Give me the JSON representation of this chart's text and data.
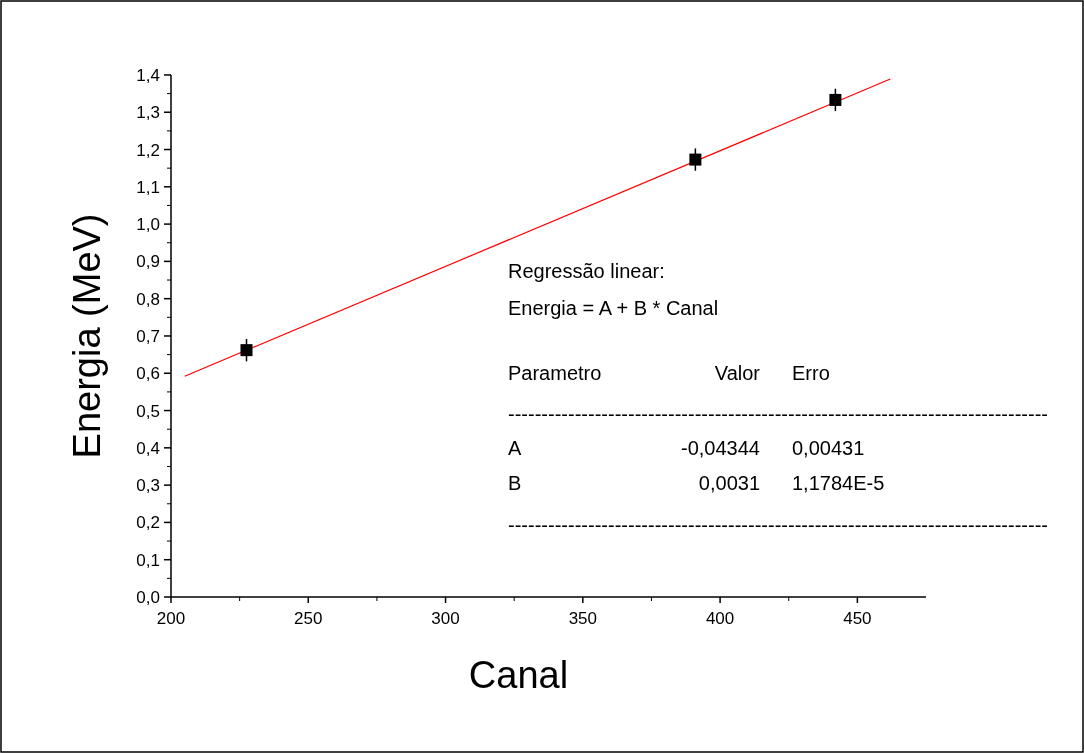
{
  "chart_data": {
    "type": "scatter",
    "xlabel": "Canal",
    "ylabel": "Energia (MeV)",
    "xlim": [
      200,
      475
    ],
    "xticks": [
      200,
      250,
      300,
      350,
      400,
      450
    ],
    "ylim": [
      0,
      1.4
    ],
    "yticks": [
      {
        "value": 0,
        "label": "0,0"
      },
      {
        "value": 0.1,
        "label": "0,1"
      },
      {
        "value": 0.2,
        "label": "0,2"
      },
      {
        "value": 0.3,
        "label": "0,3"
      },
      {
        "value": 0.4,
        "label": "0,4"
      },
      {
        "value": 0.5,
        "label": "0,5"
      },
      {
        "value": 0.6,
        "label": "0,6"
      },
      {
        "value": 0.7,
        "label": "0,7"
      },
      {
        "value": 0.8,
        "label": "0,8"
      },
      {
        "value": 0.9,
        "label": "0,9"
      },
      {
        "value": 1.0,
        "label": "1,0"
      },
      {
        "value": 1.1,
        "label": "1,1"
      },
      {
        "value": 1.2,
        "label": "1,2"
      },
      {
        "value": 1.3,
        "label": "1,3"
      },
      {
        "value": 1.4,
        "label": "1,4"
      }
    ],
    "grid": false,
    "line_style": "solid",
    "series": [
      {
        "color": "#000000",
        "marker": "square",
        "x": [
          227.5,
          391,
          442
        ],
        "values": [
          0.662,
          1.173,
          1.333
        ],
        "errors": [
          0.03,
          0.03,
          0.03
        ]
      },
      {
        "type": "line",
        "marker": "none",
        "color": "#ff0000",
        "x": [
          205,
          462
        ],
        "values": [
          0.592,
          1.389
        ]
      }
    ],
    "annotations": [
      "Regressão linear:",
      "Energia = A + B * Canal",
      "Parametro",
      "Valor",
      "Erro",
      "---------------------------------------------------------------------------------",
      "A",
      "-0,04344",
      "0,00431",
      "B",
      "0,0031",
      "1,1784E-5",
      "---------------------------------------------------------------------------------"
    ]
  }
}
